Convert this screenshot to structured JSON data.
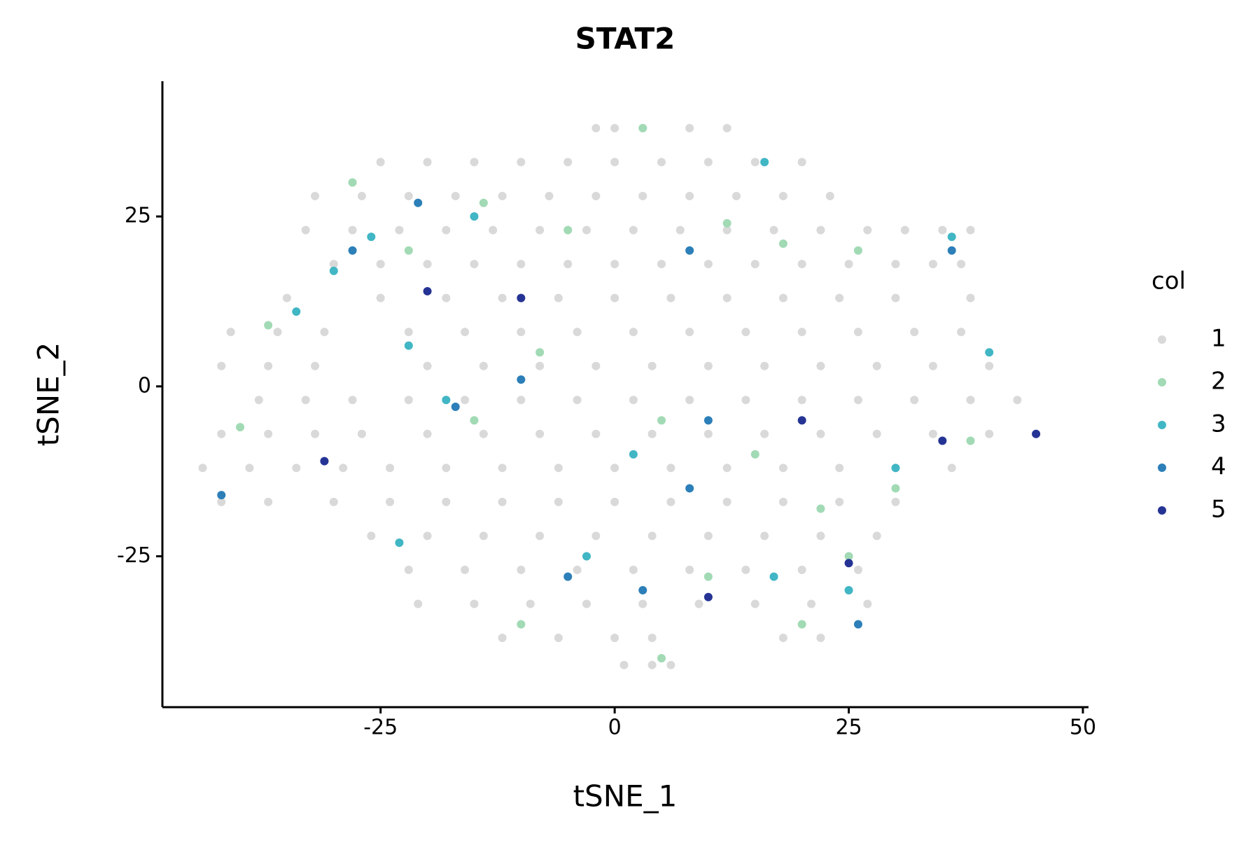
{
  "chart_data": {
    "type": "scatter",
    "title": "STAT2",
    "x_label": "tSNE_1",
    "y_label": "tSNE_2",
    "legend_title": "col",
    "legend": "right",
    "xlim": [
      -48.3,
      50.6
    ],
    "ylim": [
      -47.2,
      44.9
    ],
    "xticks": [
      -25,
      0,
      25,
      50
    ],
    "yticks": [
      -25,
      0,
      25
    ],
    "series": [
      {
        "name": "1",
        "color": "#d9d9d9",
        "x": [
          -2,
          0,
          3,
          8,
          12,
          -25,
          -20,
          -15,
          -10,
          -5,
          0,
          5,
          10,
          15,
          20,
          -32,
          -27,
          -22,
          -17,
          -12,
          -7,
          -2,
          3,
          8,
          13,
          18,
          23,
          -33,
          -28,
          -23,
          -18,
          -13,
          -8,
          -3,
          2,
          7,
          12,
          17,
          22,
          27,
          31,
          35,
          38,
          -30,
          -25,
          -20,
          -15,
          -10,
          -5,
          0,
          5,
          10,
          15,
          20,
          25,
          30,
          34,
          37,
          -35,
          -25,
          -18,
          -12,
          -6,
          0,
          6,
          12,
          18,
          24,
          30,
          38,
          -41,
          -36,
          -31,
          -22,
          -16,
          -10,
          -4,
          2,
          8,
          14,
          20,
          26,
          32,
          37,
          -42,
          -37,
          -32,
          -20,
          -14,
          -8,
          -2,
          4,
          10,
          16,
          22,
          28,
          34,
          40,
          -38,
          -33,
          -28,
          -22,
          -16,
          -10,
          -4,
          2,
          8,
          14,
          20,
          26,
          32,
          38,
          43,
          -42,
          -37,
          -32,
          -27,
          -20,
          -14,
          -8,
          -2,
          4,
          10,
          16,
          22,
          28,
          34,
          40,
          45,
          -44,
          -39,
          -34,
          -29,
          -24,
          -18,
          -12,
          -6,
          0,
          6,
          12,
          18,
          24,
          30,
          36,
          -42,
          -37,
          -30,
          -24,
          -18,
          -12,
          -6,
          0,
          6,
          12,
          18,
          24,
          30,
          -26,
          -20,
          -14,
          -8,
          -2,
          4,
          10,
          16,
          22,
          28,
          -22,
          -16,
          -10,
          -4,
          2,
          8,
          14,
          20,
          26,
          -21,
          -15,
          -9,
          -3,
          3,
          9,
          15,
          21,
          27,
          -12,
          -6,
          0,
          4,
          18,
          22,
          1,
          4,
          6
        ],
        "y": [
          38,
          38,
          38,
          38,
          38,
          33,
          33,
          33,
          33,
          33,
          33,
          33,
          33,
          33,
          33,
          28,
          28,
          28,
          28,
          28,
          28,
          28,
          28,
          28,
          28,
          28,
          28,
          23,
          23,
          23,
          23,
          23,
          23,
          23,
          23,
          23,
          23,
          23,
          23,
          23,
          23,
          23,
          23,
          18,
          18,
          18,
          18,
          18,
          18,
          18,
          18,
          18,
          18,
          18,
          18,
          18,
          18,
          18,
          13,
          13,
          13,
          13,
          13,
          13,
          13,
          13,
          13,
          13,
          13,
          13,
          8,
          8,
          8,
          8,
          8,
          8,
          8,
          8,
          8,
          8,
          8,
          8,
          8,
          8,
          3,
          3,
          3,
          3,
          3,
          3,
          3,
          3,
          3,
          3,
          3,
          3,
          3,
          3,
          -2,
          -2,
          -2,
          -2,
          -2,
          -2,
          -2,
          -2,
          -2,
          -2,
          -2,
          -2,
          -2,
          -2,
          -2,
          -7,
          -7,
          -7,
          -7,
          -7,
          -7,
          -7,
          -7,
          -7,
          -7,
          -7,
          -7,
          -7,
          -7,
          -7,
          -7,
          -12,
          -12,
          -12,
          -12,
          -12,
          -12,
          -12,
          -12,
          -12,
          -12,
          -12,
          -12,
          -12,
          -12,
          -12,
          -17,
          -17,
          -17,
          -17,
          -17,
          -17,
          -17,
          -17,
          -17,
          -17,
          -17,
          -17,
          -17,
          -22,
          -22,
          -22,
          -22,
          -22,
          -22,
          -22,
          -22,
          -22,
          -22,
          -27,
          -27,
          -27,
          -27,
          -27,
          -27,
          -27,
          -27,
          -27,
          -32,
          -32,
          -32,
          -32,
          -32,
          -32,
          -32,
          -32,
          -32,
          -37,
          -37,
          -37,
          -37,
          -37,
          -37,
          -41,
          -41,
          -41
        ]
      },
      {
        "name": "2",
        "color": "#a1dab4",
        "x": [
          -28,
          -22,
          -14,
          -5,
          3,
          12,
          18,
          26,
          -37,
          -8,
          5,
          15,
          22,
          25,
          20,
          -10,
          -40,
          30,
          38,
          5,
          -15,
          10
        ],
        "y": [
          30,
          20,
          27,
          23,
          38,
          24,
          21,
          20,
          9,
          5,
          -5,
          -10,
          -18,
          -25,
          -35,
          -35,
          -6,
          -15,
          -8,
          -40,
          -5,
          -28
        ]
      },
      {
        "name": "3",
        "color": "#41b6c4",
        "x": [
          -30,
          -26,
          -15,
          16,
          36,
          -34,
          -22,
          2,
          -3,
          17,
          25,
          40,
          -18,
          30,
          -23
        ],
        "y": [
          17,
          22,
          25,
          33,
          22,
          11,
          6,
          -10,
          -25,
          -28,
          -30,
          5,
          -2,
          -12,
          -23
        ]
      },
      {
        "name": "4",
        "color": "#2c7fb8",
        "x": [
          -42,
          -21,
          -17,
          8,
          8,
          26,
          -10,
          3,
          -5,
          36,
          -28,
          10
        ],
        "y": [
          -16,
          27,
          -3,
          20,
          -15,
          -35,
          1,
          -30,
          -28,
          20,
          20,
          -5
        ]
      },
      {
        "name": "5",
        "color": "#253494",
        "x": [
          -31,
          -20,
          25,
          10,
          45,
          -10,
          20,
          35
        ],
        "y": [
          -11,
          14,
          -26,
          -31,
          -7,
          13,
          -5,
          -8
        ]
      }
    ]
  }
}
